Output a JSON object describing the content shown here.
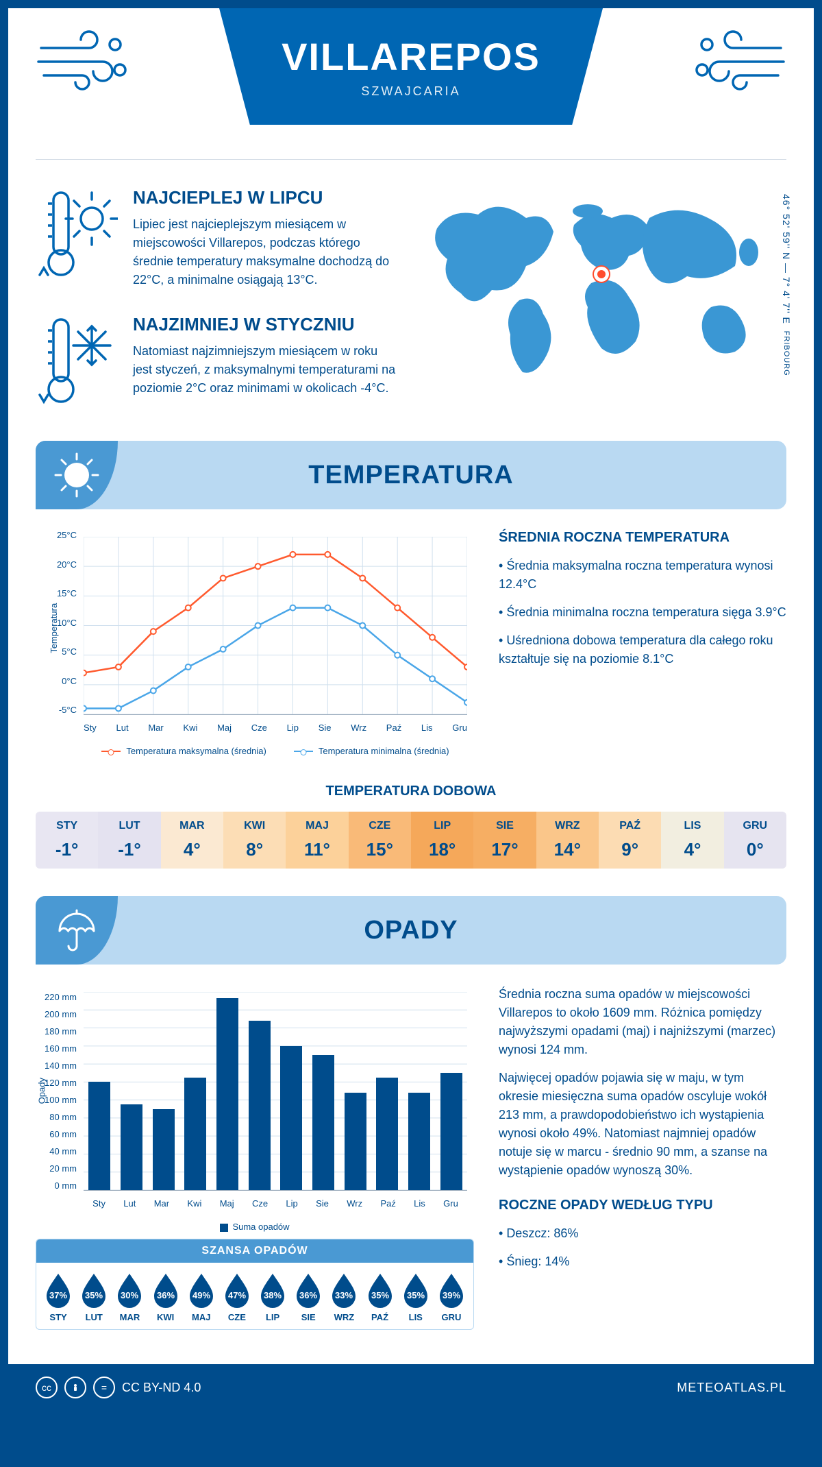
{
  "header": {
    "title": "VILLAREPOS",
    "subtitle": "SZWAJCARIA"
  },
  "coords": {
    "text": "46° 52' 59'' N — 7° 4' 7'' E",
    "region": "FRIBOURG",
    "marker": {
      "left_pct": 48,
      "top_pct": 35
    }
  },
  "warmest": {
    "title": "NAJCIEPLEJ W LIPCU",
    "body": "Lipiec jest najcieplejszym miesiącem w miejscowości Villarepos, podczas którego średnie temperatury maksymalne dochodzą do 22°C, a minimalne osiągają 13°C."
  },
  "coldest": {
    "title": "NAJZIMNIEJ W STYCZNIU",
    "body": "Natomiast najzimniejszym miesiącem w roku jest styczeń, z maksymalnymi temperaturami na poziomie 2°C oraz minimami w okolicach -4°C."
  },
  "temp_section_title": "TEMPERATURA",
  "precip_section_title": "OPADY",
  "months_short": [
    "Sty",
    "Lut",
    "Mar",
    "Kwi",
    "Maj",
    "Cze",
    "Lip",
    "Sie",
    "Wrz",
    "Paź",
    "Lis",
    "Gru"
  ],
  "months_upper": [
    "STY",
    "LUT",
    "MAR",
    "KWI",
    "MAJ",
    "CZE",
    "LIP",
    "SIE",
    "WRZ",
    "PAŹ",
    "LIS",
    "GRU"
  ],
  "temp_chart": {
    "type": "line",
    "y_label": "Temperatura",
    "y_ticks": [
      "-5°C",
      "0°C",
      "5°C",
      "10°C",
      "15°C",
      "20°C",
      "25°C"
    ],
    "y_min": -5,
    "y_max": 25,
    "series_max": {
      "label": "Temperatura maksymalna (średnia)",
      "color": "#ff5a2e",
      "values": [
        2,
        3,
        9,
        13,
        18,
        20,
        22,
        22,
        18,
        13,
        8,
        3
      ]
    },
    "series_min": {
      "label": "Temperatura minimalna (średnia)",
      "color": "#4aa6e8",
      "values": [
        -4,
        -4,
        -1,
        3,
        6,
        10,
        13,
        13,
        10,
        5,
        1,
        -3
      ]
    },
    "grid_color": "#d0e0ee"
  },
  "annual_temp": {
    "title": "ŚREDNIA ROCZNA TEMPERATURA",
    "b1": "Średnia maksymalna roczna temperatura wynosi 12.4°C",
    "b2": "Średnia minimalna roczna temperatura sięga 3.9°C",
    "b3": "Uśredniona dobowa temperatura dla całego roku kształtuje się na poziomie 8.1°C"
  },
  "daily": {
    "title": "TEMPERATURA DOBOWA",
    "values": [
      "-1°",
      "-1°",
      "4°",
      "8°",
      "11°",
      "15°",
      "18°",
      "17°",
      "14°",
      "9°",
      "4°",
      "0°"
    ],
    "cell_colors": [
      "#e8e6f2",
      "#e4e2f0",
      "#fbe9d2",
      "#fcddb5",
      "#fcd19a",
      "#f9ba78",
      "#f5a85a",
      "#f6ae63",
      "#fac68a",
      "#fcdcb3",
      "#f2eee0",
      "#e6e4f0"
    ]
  },
  "precip_chart": {
    "type": "bar",
    "y_label": "Opady",
    "y_max": 220,
    "y_step": 20,
    "bar_color": "#004c8c",
    "values": [
      120,
      95,
      90,
      125,
      213,
      188,
      160,
      150,
      108,
      125,
      108,
      130
    ],
    "legend": "Suma opadów"
  },
  "precip_text": {
    "p1": "Średnia roczna suma opadów w miejscowości Villarepos to około 1609 mm. Różnica pomiędzy najwyższymi opadami (maj) i najniższymi (marzec) wynosi 124 mm.",
    "p2": "Najwięcej opadów pojawia się w maju, w tym okresie miesięczna suma opadów oscyluje wokół 213 mm, a prawdopodobieństwo ich wystąpienia wynosi około 49%. Natomiast najmniej opadów notuje się w marcu - średnio 90 mm, a szanse na wystąpienie opadów wynoszą 30%."
  },
  "chance": {
    "title": "SZANSA OPADÓW",
    "values": [
      "37%",
      "35%",
      "30%",
      "36%",
      "49%",
      "47%",
      "38%",
      "36%",
      "33%",
      "35%",
      "35%",
      "39%"
    ]
  },
  "annual_precip_type": {
    "title": "ROCZNE OPADY WEDŁUG TYPU",
    "b1": "Deszcz: 86%",
    "b2": "Śnieg: 14%"
  },
  "footer": {
    "license": "CC BY-ND 4.0",
    "brand": "METEOATLAS.PL"
  },
  "colors": {
    "brand_dark": "#004c8c",
    "brand_mid": "#0066b3",
    "banner_bg": "#b9d9f2",
    "banner_icon": "#4a99d3"
  }
}
